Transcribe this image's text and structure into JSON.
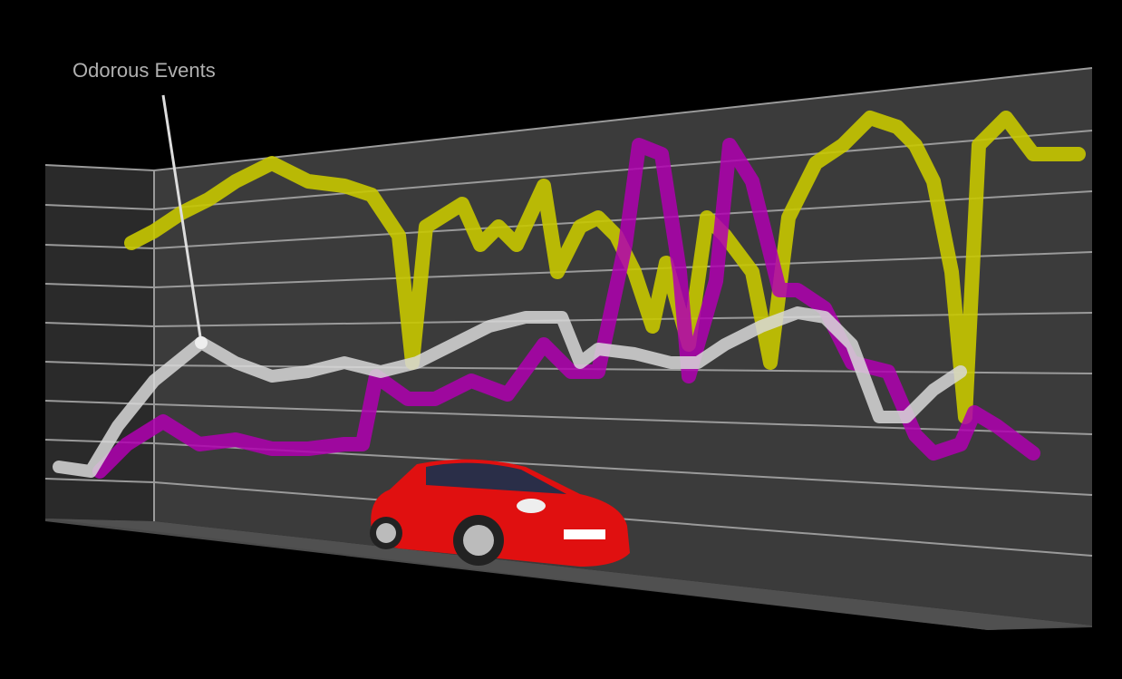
{
  "annotation": "Odorous Events"
}
